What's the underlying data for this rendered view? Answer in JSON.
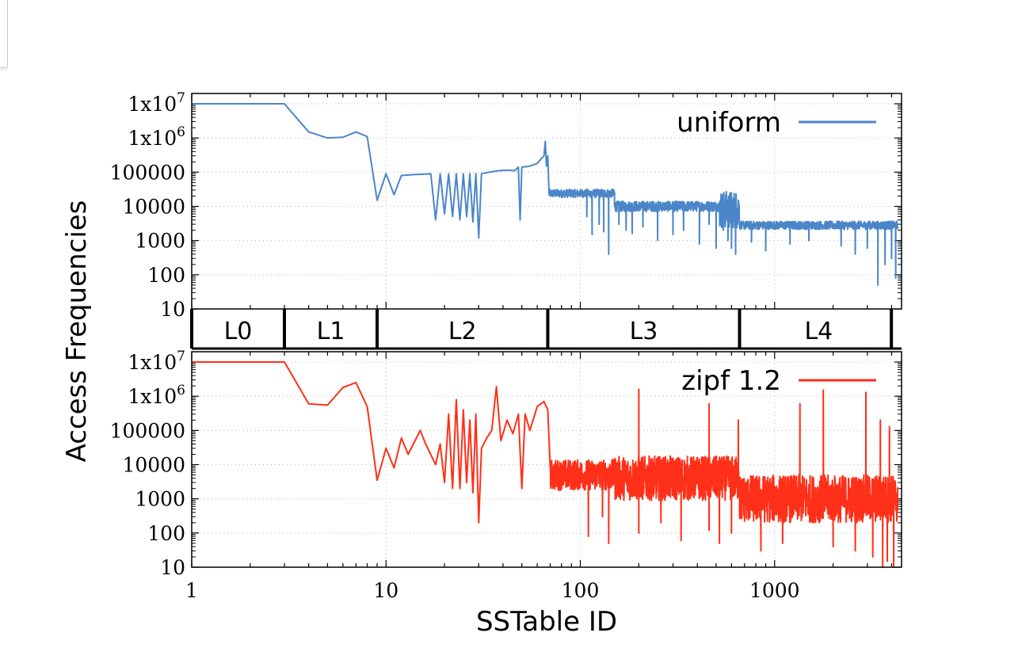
{
  "chart_data": {
    "type": "line",
    "xlabel": "SSTable ID",
    "ylabel": "Access Frequencies",
    "xscale": "log",
    "yscale": "log",
    "xlim": [
      1,
      4500
    ],
    "ylim": [
      10,
      20000000
    ],
    "grid": true,
    "x_ticks": [
      {
        "value": 1,
        "label": "1"
      },
      {
        "value": 10,
        "label": "10"
      },
      {
        "value": 100,
        "label": "100"
      },
      {
        "value": 1000,
        "label": "1000"
      }
    ],
    "y_ticks": [
      {
        "value": 10,
        "label": "10"
      },
      {
        "value": 100,
        "label": "100"
      },
      {
        "value": 1000,
        "label": "1000"
      },
      {
        "value": 10000,
        "label": "10000"
      },
      {
        "value": 100000,
        "label": "100000"
      },
      {
        "value": 1000000,
        "base": "1x10",
        "exp": "6"
      },
      {
        "value": 10000000,
        "base": "1x10",
        "exp": "7"
      }
    ],
    "levels": [
      {
        "name": "L0",
        "x_start": 1,
        "x_end": 3
      },
      {
        "name": "L1",
        "x_start": 3,
        "x_end": 9
      },
      {
        "name": "L2",
        "x_start": 9,
        "x_end": 68
      },
      {
        "name": "L3",
        "x_start": 68,
        "x_end": 660
      },
      {
        "name": "L4",
        "x_start": 660,
        "x_end": 4300
      }
    ],
    "series": [
      {
        "name": "uniform",
        "color": "#4a86c8",
        "legend_position": "top-right",
        "points": [
          [
            1,
            10000000
          ],
          [
            2,
            10000000
          ],
          [
            3,
            10000000
          ],
          [
            4,
            1500000
          ],
          [
            5,
            1000000
          ],
          [
            6,
            1050000
          ],
          [
            7,
            1500000
          ],
          [
            8,
            1100000
          ],
          [
            9,
            15000
          ],
          [
            10,
            90000
          ],
          [
            11,
            22000
          ],
          [
            12,
            80000
          ],
          [
            14,
            85000
          ],
          [
            16,
            88000
          ],
          [
            17,
            90000
          ],
          [
            18,
            4000
          ],
          [
            19,
            90000
          ],
          [
            20,
            6000
          ],
          [
            21,
            90000
          ],
          [
            22,
            5000
          ],
          [
            23,
            90000
          ],
          [
            24,
            4000
          ],
          [
            25,
            90000
          ],
          [
            26,
            5000
          ],
          [
            27,
            90000
          ],
          [
            28,
            3500
          ],
          [
            29,
            90000
          ],
          [
            30,
            1200
          ],
          [
            31,
            90000
          ],
          [
            34,
            100000
          ],
          [
            38,
            110000
          ],
          [
            42,
            115000
          ],
          [
            46,
            110000
          ],
          [
            48,
            140000
          ],
          [
            49,
            4000
          ],
          [
            50,
            140000
          ],
          [
            55,
            150000
          ],
          [
            60,
            180000
          ],
          [
            63,
            250000
          ],
          [
            65,
            300000
          ],
          [
            66,
            800000
          ],
          [
            67,
            150000
          ],
          [
            68,
            300000
          ],
          [
            69,
            25000
          ]
        ],
        "noise_segments": [
          {
            "x_start": 69,
            "x_end": 150,
            "center": 24000,
            "spread": 0.12,
            "dips": [
              [
                115,
                1500
              ],
              [
                132,
                1800
              ],
              [
                140,
                400
              ],
              [
                108,
                5000
              ],
              [
                125,
                3000
              ]
            ]
          },
          {
            "x_start": 150,
            "x_end": 520,
            "center": 10000,
            "spread": 0.15,
            "dips": [
              [
                158,
                3000
              ],
              [
                172,
                2000
              ],
              [
                185,
                1600
              ],
              [
                210,
                2500
              ],
              [
                250,
                1000
              ],
              [
                300,
                1500
              ],
              [
                340,
                2000
              ],
              [
                410,
                800
              ],
              [
                460,
                3000
              ],
              [
                500,
                600
              ]
            ]
          },
          {
            "x_start": 520,
            "x_end": 660,
            "center": 8000,
            "spread": 0.55,
            "dips": [
              [
                545,
                2000
              ],
              [
                575,
                1000
              ],
              [
                600,
                600
              ],
              [
                630,
                400
              ]
            ]
          },
          {
            "x_start": 660,
            "x_end": 4300,
            "center": 2800,
            "spread": 0.12,
            "dips": [
              [
                760,
                900
              ],
              [
                900,
                500
              ],
              [
                1200,
                800
              ],
              [
                1500,
                1000
              ],
              [
                2200,
                700
              ],
              [
                2600,
                400
              ],
              [
                3000,
                600
              ],
              [
                3400,
                50
              ],
              [
                3700,
                200
              ],
              [
                4000,
                300
              ],
              [
                4200,
                80
              ]
            ]
          }
        ]
      },
      {
        "name": "zipf 1.2",
        "color": "#ff3019",
        "legend_position": "top-right",
        "points": [
          [
            1,
            10000000
          ],
          [
            2,
            10000000
          ],
          [
            3,
            10000000
          ],
          [
            4,
            600000
          ],
          [
            5,
            550000
          ],
          [
            6,
            1800000
          ],
          [
            7,
            2500000
          ],
          [
            8,
            500000
          ],
          [
            9,
            3500
          ],
          [
            10,
            30000
          ],
          [
            11,
            8000
          ],
          [
            12,
            60000
          ],
          [
            13,
            20000
          ],
          [
            15,
            100000
          ],
          [
            16,
            40000
          ],
          [
            18,
            10000
          ],
          [
            19,
            40000
          ],
          [
            20,
            3000
          ],
          [
            21,
            300000
          ],
          [
            22,
            2000
          ],
          [
            23,
            800000
          ],
          [
            24,
            2000
          ],
          [
            25,
            400000
          ],
          [
            26,
            3000
          ],
          [
            27,
            200000
          ],
          [
            28,
            1500
          ],
          [
            29,
            300000
          ],
          [
            30,
            200
          ],
          [
            31,
            30000
          ],
          [
            33,
            60000
          ],
          [
            35,
            100000
          ],
          [
            37,
            1900000
          ],
          [
            39,
            50000
          ],
          [
            42,
            200000
          ],
          [
            45,
            80000
          ],
          [
            48,
            300000
          ],
          [
            50,
            2000
          ],
          [
            52,
            300000
          ],
          [
            55,
            100000
          ],
          [
            60,
            500000
          ],
          [
            65,
            700000
          ],
          [
            68,
            400000
          ],
          [
            70,
            8000
          ]
        ],
        "noise_segments": [
          {
            "x_start": 70,
            "x_end": 150,
            "center": 5000,
            "spread": 0.45,
            "dips": [
              [
                110,
                80
              ],
              [
                130,
                300
              ],
              [
                140,
                50
              ]
            ]
          },
          {
            "x_start": 150,
            "x_end": 660,
            "center": 4000,
            "spread": 0.65,
            "dips": [
              [
                200,
                100
              ],
              [
                260,
                200
              ],
              [
                330,
                60
              ],
              [
                460,
                120
              ],
              [
                520,
                50
              ],
              [
                600,
                100
              ]
            ]
          },
          {
            "x_start": 660,
            "x_end": 4300,
            "center": 1000,
            "spread": 0.7,
            "dips": [
              [
                850,
                30
              ],
              [
                1100,
                50
              ],
              [
                2000,
                40
              ],
              [
                2600,
                30
              ],
              [
                3200,
                20
              ],
              [
                3600,
                10
              ],
              [
                3800,
                15
              ],
              [
                4100,
                10
              ]
            ]
          }
        ],
        "peaks": [
          [
            200,
            1600000
          ],
          [
            460,
            600000
          ],
          [
            650,
            200000
          ],
          [
            1350,
            600000
          ],
          [
            1780,
            1500000
          ],
          [
            2950,
            1300000
          ],
          [
            3500,
            200000
          ],
          [
            3900,
            130000
          ]
        ]
      }
    ]
  }
}
